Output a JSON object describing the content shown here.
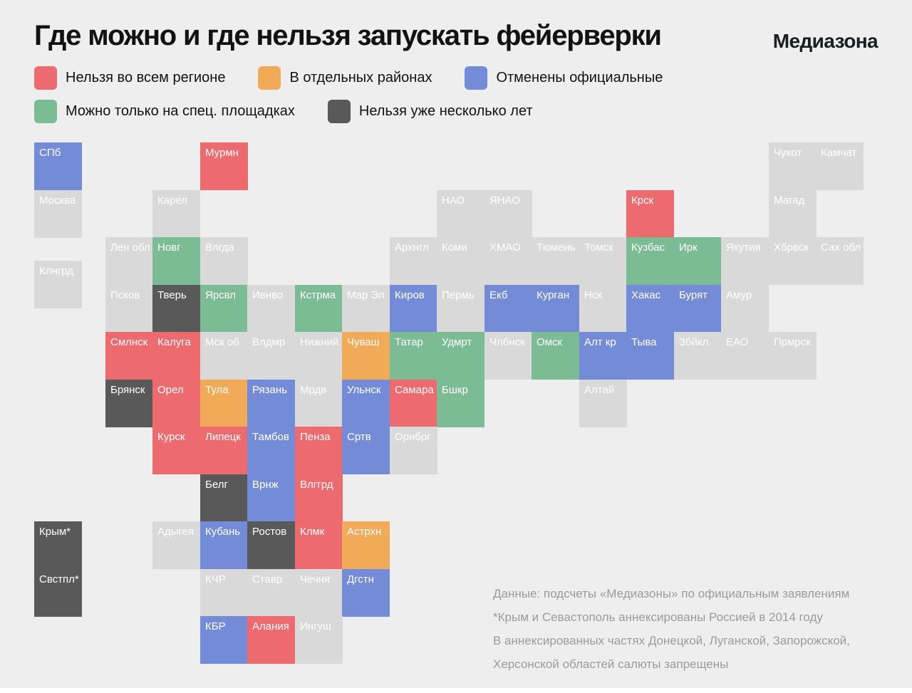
{
  "header": {
    "title": "Где можно и где нельзя запускать фейерверки",
    "brand": "Медиазона"
  },
  "status_colors": {
    "ban_all": "#ED6A6E",
    "ban_districts": "#F1AB58",
    "official_cancelled": "#748BD8",
    "special_sites": "#7CBC94",
    "ban_years": "#595959",
    "none": "#D9D9D9"
  },
  "legend": {
    "rows": [
      [
        {
          "status": "ban_all",
          "label": "Нельзя во всем регионе"
        },
        {
          "status": "ban_districts",
          "label": "В отдельных районах"
        },
        {
          "status": "official_cancelled",
          "label": "Отменены официальные"
        }
      ],
      [
        {
          "status": "special_sites",
          "label": "Можно только на спец. площадках"
        },
        {
          "status": "ban_years",
          "label": "Нельзя уже несколько лет"
        }
      ]
    ]
  },
  "map": {
    "tiles": [
      {
        "name": "СПб",
        "status": "official_cancelled",
        "col": 0,
        "row": 0
      },
      {
        "name": "Мурмн",
        "status": "ban_all",
        "col": 3.5,
        "row": 0
      },
      {
        "name": "Чукот",
        "status": "none",
        "col": 15.5,
        "row": 0
      },
      {
        "name": "Камчат",
        "status": "none",
        "col": 16.5,
        "row": 0
      },
      {
        "name": "Москва",
        "status": "none",
        "col": 0,
        "row": 1
      },
      {
        "name": "Карел",
        "status": "none",
        "col": 2.5,
        "row": 1
      },
      {
        "name": "НАО",
        "status": "none",
        "col": 8.5,
        "row": 1
      },
      {
        "name": "ЯНАО",
        "status": "none",
        "col": 9.5,
        "row": 1
      },
      {
        "name": "Крск",
        "status": "ban_all",
        "col": 12.5,
        "row": 1
      },
      {
        "name": "Магад",
        "status": "none",
        "col": 15.5,
        "row": 1
      },
      {
        "name": "Лен обл",
        "status": "none",
        "col": 1.5,
        "row": 2
      },
      {
        "name": "Новг",
        "status": "special_sites",
        "col": 2.5,
        "row": 2
      },
      {
        "name": "Влгда",
        "status": "none",
        "col": 3.5,
        "row": 2
      },
      {
        "name": "Архнгл",
        "status": "none",
        "col": 7.5,
        "row": 2
      },
      {
        "name": "Коми",
        "status": "none",
        "col": 8.5,
        "row": 2
      },
      {
        "name": "ХМАО",
        "status": "none",
        "col": 9.5,
        "row": 2
      },
      {
        "name": "Тюмень",
        "status": "none",
        "col": 10.5,
        "row": 2
      },
      {
        "name": "Томск",
        "status": "none",
        "col": 11.5,
        "row": 2
      },
      {
        "name": "Кузбас",
        "status": "special_sites",
        "col": 12.5,
        "row": 2
      },
      {
        "name": "Ирк",
        "status": "special_sites",
        "col": 13.5,
        "row": 2
      },
      {
        "name": "Якутия",
        "status": "none",
        "col": 14.5,
        "row": 2
      },
      {
        "name": "Хбрвск",
        "status": "none",
        "col": 15.5,
        "row": 2
      },
      {
        "name": "Сах обл",
        "status": "none",
        "col": 16.5,
        "row": 2
      },
      {
        "name": "Клнгрд",
        "status": "none",
        "col": 0,
        "row": 2.5
      },
      {
        "name": "Псков",
        "status": "none",
        "col": 1.5,
        "row": 3
      },
      {
        "name": "Тверь",
        "status": "ban_years",
        "col": 2.5,
        "row": 3
      },
      {
        "name": "Ярсвл",
        "status": "special_sites",
        "col": 3.5,
        "row": 3
      },
      {
        "name": "Ивнво",
        "status": "none",
        "col": 4.5,
        "row": 3
      },
      {
        "name": "Кстрма",
        "status": "special_sites",
        "col": 5.5,
        "row": 3
      },
      {
        "name": "Мар Эл",
        "status": "none",
        "col": 6.5,
        "row": 3
      },
      {
        "name": "Киров",
        "status": "official_cancelled",
        "col": 7.5,
        "row": 3
      },
      {
        "name": "Пермь",
        "status": "none",
        "col": 8.5,
        "row": 3
      },
      {
        "name": "Екб",
        "status": "official_cancelled",
        "col": 9.5,
        "row": 3
      },
      {
        "name": "Курган",
        "status": "official_cancelled",
        "col": 10.5,
        "row": 3
      },
      {
        "name": "Нск",
        "status": "none",
        "col": 11.5,
        "row": 3
      },
      {
        "name": "Хакас",
        "status": "official_cancelled",
        "col": 12.5,
        "row": 3
      },
      {
        "name": "Бурят",
        "status": "official_cancelled",
        "col": 13.5,
        "row": 3
      },
      {
        "name": "Амур",
        "status": "none",
        "col": 14.5,
        "row": 3
      },
      {
        "name": "Смлнск",
        "status": "ban_all",
        "col": 1.5,
        "row": 4
      },
      {
        "name": "Калуга",
        "status": "ban_all",
        "col": 2.5,
        "row": 4
      },
      {
        "name": "Мск об",
        "status": "none",
        "col": 3.5,
        "row": 4
      },
      {
        "name": "Влдмр",
        "status": "none",
        "col": 4.5,
        "row": 4
      },
      {
        "name": "Нижний",
        "status": "none",
        "col": 5.5,
        "row": 4
      },
      {
        "name": "Чуваш",
        "status": "ban_districts",
        "col": 6.5,
        "row": 4
      },
      {
        "name": "Татар",
        "status": "special_sites",
        "col": 7.5,
        "row": 4
      },
      {
        "name": "Удмрт",
        "status": "special_sites",
        "col": 8.5,
        "row": 4
      },
      {
        "name": "Члбнск",
        "status": "none",
        "col": 9.5,
        "row": 4
      },
      {
        "name": "Омск",
        "status": "special_sites",
        "col": 10.5,
        "row": 4
      },
      {
        "name": "Алт кр",
        "status": "official_cancelled",
        "col": 11.5,
        "row": 4
      },
      {
        "name": "Тыва",
        "status": "official_cancelled",
        "col": 12.5,
        "row": 4
      },
      {
        "name": "Збйкл",
        "status": "none",
        "col": 13.5,
        "row": 4
      },
      {
        "name": "ЕАО",
        "status": "none",
        "col": 14.5,
        "row": 4
      },
      {
        "name": "Прмрск",
        "status": "none",
        "col": 15.5,
        "row": 4
      },
      {
        "name": "Брянск",
        "status": "ban_years",
        "col": 1.5,
        "row": 5
      },
      {
        "name": "Орел",
        "status": "ban_all",
        "col": 2.5,
        "row": 5
      },
      {
        "name": "Тула",
        "status": "ban_districts",
        "col": 3.5,
        "row": 5
      },
      {
        "name": "Рязань",
        "status": "official_cancelled",
        "col": 4.5,
        "row": 5
      },
      {
        "name": "Мрдв",
        "status": "none",
        "col": 5.5,
        "row": 5
      },
      {
        "name": "Ульнск",
        "status": "official_cancelled",
        "col": 6.5,
        "row": 5
      },
      {
        "name": "Самара",
        "status": "ban_all",
        "col": 7.5,
        "row": 5
      },
      {
        "name": "Бшкр",
        "status": "special_sites",
        "col": 8.5,
        "row": 5
      },
      {
        "name": "Алтай",
        "status": "none",
        "col": 11.5,
        "row": 5
      },
      {
        "name": "Курск",
        "status": "ban_all",
        "col": 2.5,
        "row": 6
      },
      {
        "name": "Липецк",
        "status": "ban_all",
        "col": 3.5,
        "row": 6
      },
      {
        "name": "Тамбов",
        "status": "official_cancelled",
        "col": 4.5,
        "row": 6
      },
      {
        "name": "Пенза",
        "status": "ban_all",
        "col": 5.5,
        "row": 6
      },
      {
        "name": "Сртв",
        "status": "official_cancelled",
        "col": 6.5,
        "row": 6
      },
      {
        "name": "Орнбрг",
        "status": "none",
        "col": 7.5,
        "row": 6
      },
      {
        "name": "Белг",
        "status": "ban_years",
        "col": 3.5,
        "row": 7
      },
      {
        "name": "Врнж",
        "status": "official_cancelled",
        "col": 4.5,
        "row": 7
      },
      {
        "name": "Влггрд",
        "status": "ban_all",
        "col": 5.5,
        "row": 7
      },
      {
        "name": "Крым*",
        "status": "ban_years",
        "col": 0,
        "row": 8
      },
      {
        "name": "Адыгея",
        "status": "none",
        "col": 2.5,
        "row": 8
      },
      {
        "name": "Кубань",
        "status": "official_cancelled",
        "col": 3.5,
        "row": 8
      },
      {
        "name": "Ростов",
        "status": "ban_years",
        "col": 4.5,
        "row": 8
      },
      {
        "name": "Клмк",
        "status": "ban_all",
        "col": 5.5,
        "row": 8
      },
      {
        "name": "Астрхн",
        "status": "ban_districts",
        "col": 6.5,
        "row": 8
      },
      {
        "name": "Свстпл*",
        "status": "ban_years",
        "col": 0,
        "row": 9
      },
      {
        "name": "КЧР",
        "status": "none",
        "col": 3.5,
        "row": 9
      },
      {
        "name": "Ставр",
        "status": "none",
        "col": 4.5,
        "row": 9
      },
      {
        "name": "Чечня",
        "status": "none",
        "col": 5.5,
        "row": 9
      },
      {
        "name": "Дгстн",
        "status": "official_cancelled",
        "col": 6.5,
        "row": 9
      },
      {
        "name": "КБР",
        "status": "official_cancelled",
        "col": 3.5,
        "row": 10
      },
      {
        "name": "Алания",
        "status": "ban_all",
        "col": 4.5,
        "row": 10
      },
      {
        "name": "Ингуш",
        "status": "none",
        "col": 5.5,
        "row": 10
      }
    ]
  },
  "footnotes": {
    "lines": [
      "Данные: подсчеты «Медиазоны» по официальным заявлениям",
      "*Крым и Севастополь аннексированы Россией в 2014 году",
      "В аннексированных частях Донецкой, Луганской, Запорожской,",
      "Херсонской областей салюты запрещены"
    ]
  }
}
